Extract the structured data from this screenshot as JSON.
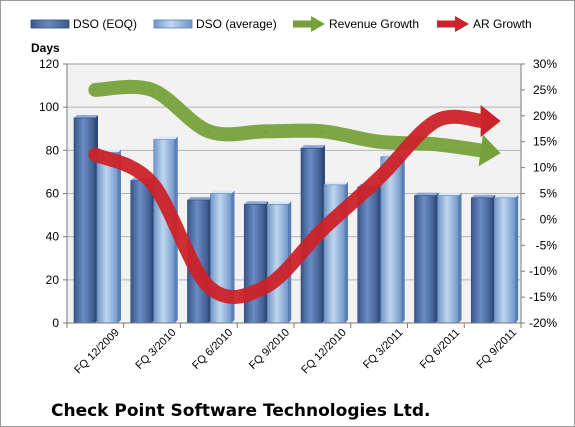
{
  "chart_data": {
    "type": "bar",
    "title": "Check Point Software Technologies Ltd.",
    "categories": [
      "FQ 12/2009",
      "FQ 3/2010",
      "FQ 6/2010",
      "FQ 9/2010",
      "FQ 12/2010",
      "FQ 3/2011",
      "FQ 6/2011",
      "FQ 9/2011"
    ],
    "ylabel": "Days",
    "ylim": [
      0,
      120
    ],
    "yticks": [
      "0",
      "20",
      "40",
      "60",
      "80",
      "100",
      "120"
    ],
    "y2lim": [
      -20,
      30
    ],
    "y2ticks": [
      "-20%",
      "-15%",
      "-10%",
      "-5%",
      "0%",
      "5%",
      "10%",
      "15%",
      "20%",
      "25%",
      "30%"
    ],
    "grid": true,
    "legend_position": "top",
    "series": [
      {
        "name": "DSO (EOQ)",
        "kind": "bar",
        "axis": "left",
        "color": "#4f6fa8",
        "values": [
          95,
          66,
          57,
          55,
          81,
          63,
          59,
          58
        ]
      },
      {
        "name": "DSO (average)",
        "kind": "bar",
        "axis": "left",
        "color": "#93b4dc",
        "values": [
          79,
          85,
          60,
          55,
          64,
          77,
          59,
          58
        ]
      },
      {
        "name": "Revenue Growth",
        "kind": "arrow-line",
        "axis": "right",
        "color": "#76a13a",
        "values": [
          25,
          25,
          17,
          17,
          17,
          15,
          14.5,
          13
        ]
      },
      {
        "name": "AR Growth",
        "kind": "arrow-line",
        "axis": "right",
        "color": "#cc2229",
        "values": [
          12.5,
          7,
          -13,
          -13,
          -2,
          8,
          19,
          19
        ]
      }
    ]
  }
}
